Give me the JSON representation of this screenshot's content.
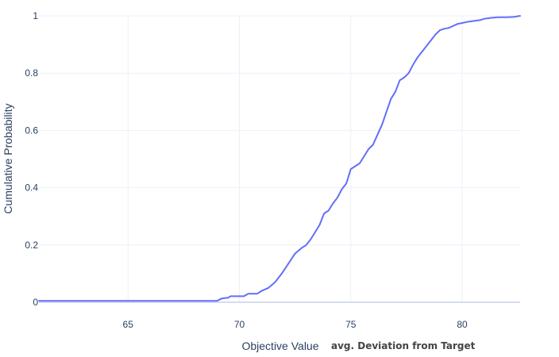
{
  "chart_data": {
    "type": "line",
    "xlabel": "Objective Value",
    "xlabel_note": "avg. Deviation from Target",
    "ylabel": "Cumulative Probability",
    "xlim": [
      61.0,
      82.6
    ],
    "ylim": [
      0,
      1
    ],
    "x_ticks": [
      65,
      70,
      75,
      80
    ],
    "y_ticks": [
      0,
      0.2,
      0.4,
      0.6,
      0.8,
      1
    ],
    "y_tick_labels": [
      "0",
      "0.2",
      "0.4",
      "0.6",
      "0.8",
      "1"
    ],
    "grid": true,
    "line_color": "#636efa",
    "series": [
      {
        "x": [
          61.0,
          69.0,
          69.2,
          69.5,
          69.6,
          70.2,
          70.4,
          70.8,
          71.0,
          71.3,
          71.6,
          71.9,
          72.2,
          72.5,
          72.8,
          73.0,
          73.2,
          73.4,
          73.6,
          73.8,
          74.0,
          74.2,
          74.4,
          74.6,
          74.8,
          75.0,
          75.2,
          75.4,
          75.8,
          76.0,
          76.2,
          76.4,
          76.6,
          76.8,
          77.0,
          77.2,
          77.4,
          77.6,
          77.8,
          78.0,
          78.2,
          78.4,
          78.6,
          78.8,
          79.0,
          79.2,
          79.4,
          79.6,
          79.8,
          80.0,
          80.3,
          80.6,
          80.8,
          81.0,
          81.3,
          81.6,
          82.0,
          82.3,
          82.6
        ],
        "y": [
          0.005,
          0.005,
          0.013,
          0.016,
          0.021,
          0.021,
          0.03,
          0.03,
          0.04,
          0.05,
          0.07,
          0.1,
          0.135,
          0.17,
          0.19,
          0.2,
          0.22,
          0.245,
          0.27,
          0.31,
          0.32,
          0.345,
          0.365,
          0.395,
          0.415,
          0.465,
          0.475,
          0.485,
          0.535,
          0.55,
          0.585,
          0.62,
          0.665,
          0.71,
          0.735,
          0.775,
          0.785,
          0.8,
          0.83,
          0.855,
          0.875,
          0.895,
          0.915,
          0.935,
          0.95,
          0.955,
          0.958,
          0.965,
          0.972,
          0.975,
          0.98,
          0.983,
          0.985,
          0.99,
          0.993,
          0.995,
          0.995,
          0.996,
          1.0
        ]
      }
    ]
  }
}
